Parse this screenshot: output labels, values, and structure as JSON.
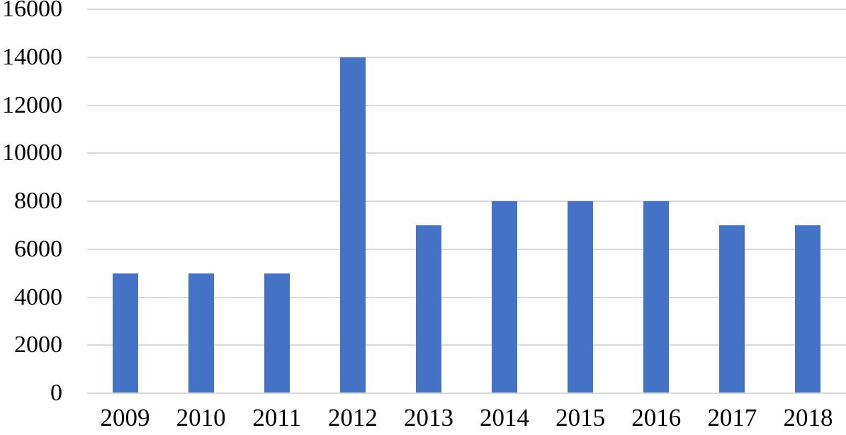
{
  "chart_data": {
    "type": "bar",
    "title": "",
    "xlabel": "",
    "ylabel": "",
    "categories": [
      "2009",
      "2010",
      "2011",
      "2012",
      "2013",
      "2014",
      "2015",
      "2016",
      "2017",
      "2018"
    ],
    "values": [
      5000,
      5000,
      5000,
      14000,
      7000,
      8000,
      8000,
      8000,
      7000,
      7000
    ],
    "ylim": [
      0,
      16000
    ],
    "ytick_interval": 2000,
    "ytick_labels": [
      "0",
      "2000",
      "4000",
      "6000",
      "8000",
      "10000",
      "12000",
      "14000",
      "16000"
    ],
    "grid": true,
    "legend": false,
    "colors": {
      "bar": "#4472C4",
      "gridline": "#D9D9D9",
      "axis_line": "#D9D9D9",
      "text": "#000000",
      "background": "#FFFFFF"
    }
  }
}
